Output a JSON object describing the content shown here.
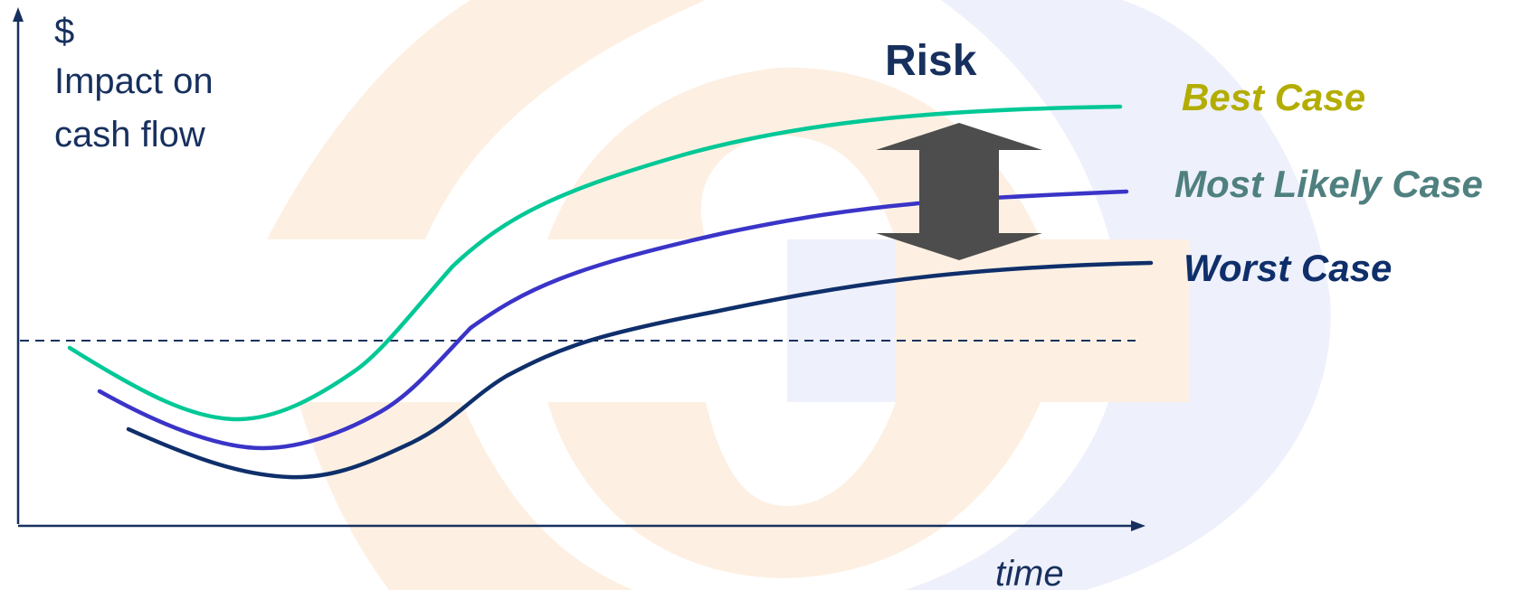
{
  "y_axis": {
    "symbol": "$",
    "label_line1": "Impact on",
    "label_line2": "cash flow"
  },
  "x_axis": {
    "label": "time"
  },
  "risk_label": "Risk",
  "scenarios": [
    {
      "key": "best",
      "label": "Best Case",
      "label_color": "#b3ad00",
      "line_color": "#00c896"
    },
    {
      "key": "likely",
      "label": "Most Likely Case",
      "label_color": "#4f8080",
      "line_color": "#3a34c8"
    },
    {
      "key": "worst",
      "label": "Worst Case",
      "label_color": "#0f2f6b",
      "line_color": "#0f2f6b"
    }
  ],
  "colors": {
    "axis": "#17305e",
    "text": "#17305e",
    "arrow": "#4d4d4d",
    "baseline_dash": "#17305e",
    "watermark_orange": "#fdf0e2",
    "watermark_blue": "#eef0fb"
  }
}
